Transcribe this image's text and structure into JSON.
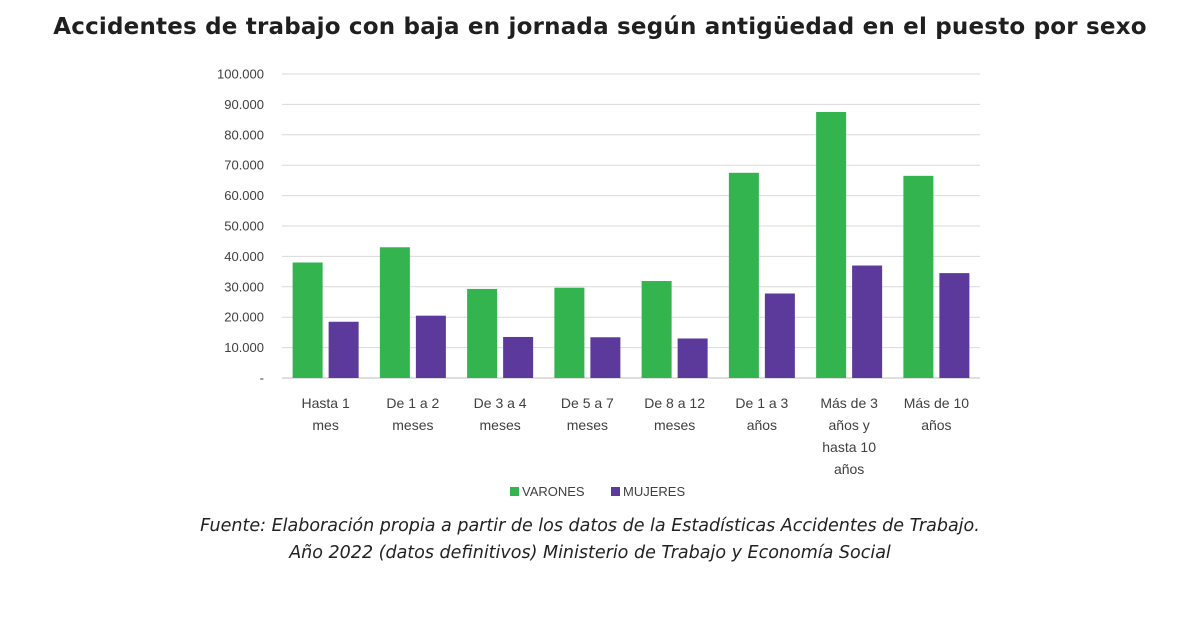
{
  "chart_data": {
    "type": "bar",
    "title": "Accidentes de trabajo con baja en jornada según antigüedad en el puesto por sexo",
    "categories": [
      [
        "Hasta 1",
        "mes"
      ],
      [
        "De 1 a 2",
        "meses"
      ],
      [
        "De 3 a 4",
        "meses"
      ],
      [
        "De 5 a 7",
        "meses"
      ],
      [
        "De 8 a 12",
        "meses"
      ],
      [
        "De 1 a 3",
        "años"
      ],
      [
        "Más de 3",
        "años y",
        "hasta 10",
        "años"
      ],
      [
        "Más de 10",
        "años"
      ]
    ],
    "series": [
      {
        "name": "VARONES",
        "color": "#33b44f",
        "values": [
          38000,
          43000,
          29300,
          29700,
          31900,
          67500,
          87500,
          66500
        ]
      },
      {
        "name": "MUJERES",
        "color": "#5b3a9b",
        "values": [
          18500,
          20500,
          13500,
          13400,
          13000,
          27800,
          37000,
          34500
        ]
      }
    ],
    "ylim": [
      0,
      100000
    ],
    "yticks": [
      {
        "value": 0,
        "label": "-"
      },
      {
        "value": 10000,
        "label": "10.000"
      },
      {
        "value": 20000,
        "label": "20.000"
      },
      {
        "value": 30000,
        "label": "30.000"
      },
      {
        "value": 40000,
        "label": "40.000"
      },
      {
        "value": 50000,
        "label": "50.000"
      },
      {
        "value": 60000,
        "label": "60.000"
      },
      {
        "value": 70000,
        "label": "70.000"
      },
      {
        "value": 80000,
        "label": "80.000"
      },
      {
        "value": 90000,
        "label": "90.000"
      },
      {
        "value": 100000,
        "label": "100.000"
      }
    ],
    "grid": true,
    "legend_position": "bottom"
  },
  "source": {
    "line1": "Fuente: Elaboración propia a partir de los datos de la Estadísticas Accidentes de Trabajo.",
    "line2": "Año 2022 (datos definitivos) Ministerio de Trabajo y Economía Social"
  }
}
